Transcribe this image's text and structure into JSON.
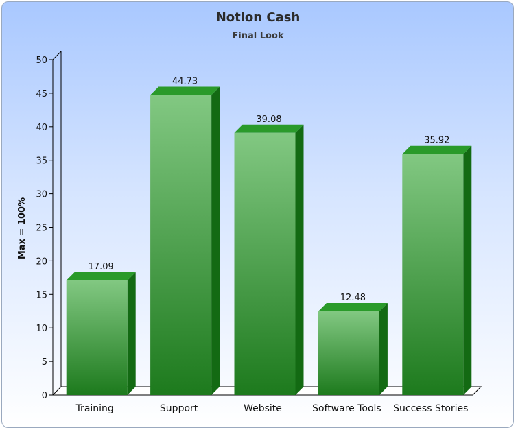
{
  "chart_data": {
    "type": "bar",
    "title": "Notion Cash",
    "subtitle": "Final Look",
    "ylabel": "Max = 100%",
    "xlabel": "",
    "ylim": [
      0,
      50
    ],
    "yticks": [
      0,
      5,
      10,
      15,
      20,
      25,
      30,
      35,
      40,
      45,
      50
    ],
    "categories": [
      "Training",
      "Support",
      "Website",
      "Software Tools",
      "Success Stories"
    ],
    "values": [
      17.09,
      44.73,
      39.08,
      12.48,
      35.92
    ],
    "value_labels": [
      "17.09",
      "44.73",
      "39.08",
      "12.48",
      "35.92"
    ],
    "grid": false,
    "legend": "none",
    "colors": {
      "bar_top": "#82c882",
      "bar_bottom": "#1d7a1d",
      "bar_side": "#136a13",
      "bar_cap": "#2a9a2a",
      "background_top": "#a9c8ff",
      "background_bottom": "#ffffff"
    }
  }
}
